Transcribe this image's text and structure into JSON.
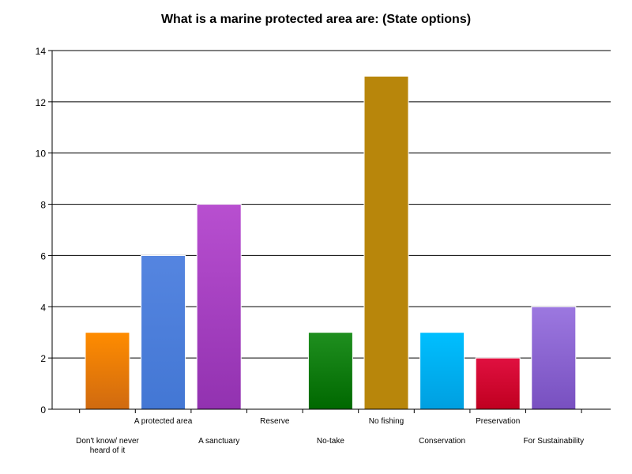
{
  "chart_data": {
    "type": "bar",
    "title": "What is a marine protected area are: (State options)",
    "xlabel": "",
    "ylabel": "",
    "categories": [
      "Don't know/ never heard of it",
      "A protected area",
      "A sanctuary",
      "Reserve",
      "No-take",
      "No fishing",
      "Conservation",
      "Preservation",
      "For Sustainability"
    ],
    "values": [
      3,
      6,
      8,
      0,
      3,
      13,
      3,
      2,
      4
    ],
    "ylim": [
      0,
      14
    ],
    "yticks": [
      "0",
      "2",
      "4",
      "6",
      "8",
      "10",
      "12",
      "14"
    ],
    "grid": true,
    "legend": "none",
    "colors": [
      [
        "#ff8c00",
        "#d06a10"
      ],
      [
        "#5585e0",
        "#4377d4"
      ],
      [
        "#b84fd0",
        "#9232b0"
      ],
      [
        "#888888",
        "#666666"
      ],
      [
        "#1f8f1f",
        "#006800"
      ],
      [
        "#b8860b",
        "#b8860b"
      ],
      [
        "#00bfff",
        "#009fe0"
      ],
      [
        "#e01040",
        "#c00020"
      ],
      [
        "#9c78e0",
        "#7850c0"
      ]
    ]
  }
}
